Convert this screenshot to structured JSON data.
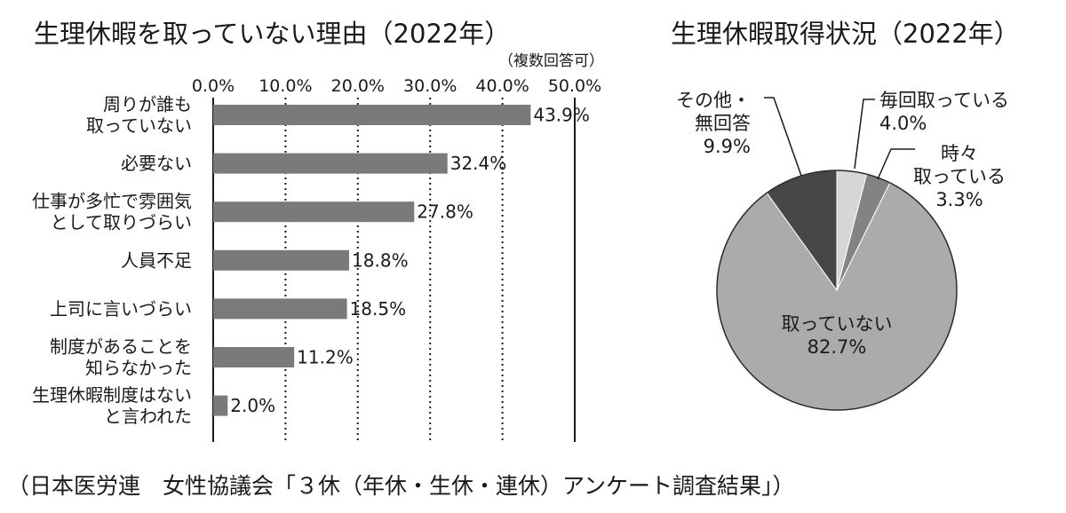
{
  "source": "（日本医労連　女性協議会「３休（年休・生休・連休）アンケート調査結果」）",
  "chart_data": [
    {
      "type": "bar",
      "orientation": "horizontal",
      "title": "生理休暇を取っていない理由（2022年）",
      "note": "（複数回答可）",
      "tick_labels": [
        "0.0%",
        "10.0%",
        "20.0%",
        "30.0%",
        "40.0%",
        "50.0%"
      ],
      "xlim": [
        0,
        50
      ],
      "grid": "dotted vertical",
      "categories": [
        [
          "周りが誰も",
          "取っていない"
        ],
        [
          "必要ない"
        ],
        [
          "仕事が多忙で雰囲気",
          "として取りづらい"
        ],
        [
          "人員不足"
        ],
        [
          "上司に言いづらい"
        ],
        [
          "制度があることを",
          "知らなかった"
        ],
        [
          "生理休暇制度はない",
          "と言われた"
        ]
      ],
      "values": [
        43.9,
        32.4,
        27.8,
        18.8,
        18.5,
        11.2,
        2.0
      ],
      "value_labels": [
        "43.9%",
        "32.4%",
        "27.8%",
        "18.8%",
        "18.5%",
        "11.2%",
        "2.0%"
      ],
      "bar_color": "#7a7a7a"
    },
    {
      "type": "pie",
      "title": "生理休暇取得状況（2022年）",
      "slices": [
        {
          "label_lines": [
            "毎回取っている",
            "4.0%"
          ],
          "value": 4.0,
          "color": "#d6d6d6"
        },
        {
          "label_lines": [
            "時々",
            "取っている",
            "3.3%"
          ],
          "value": 3.3,
          "color": "#838383"
        },
        {
          "label_lines": [
            "取っていない",
            "82.7%"
          ],
          "value": 82.7,
          "color": "#ababab"
        },
        {
          "label_lines": [
            "その他・",
            "無回答",
            "9.9%"
          ],
          "value": 9.9,
          "color": "#474747"
        }
      ]
    }
  ]
}
